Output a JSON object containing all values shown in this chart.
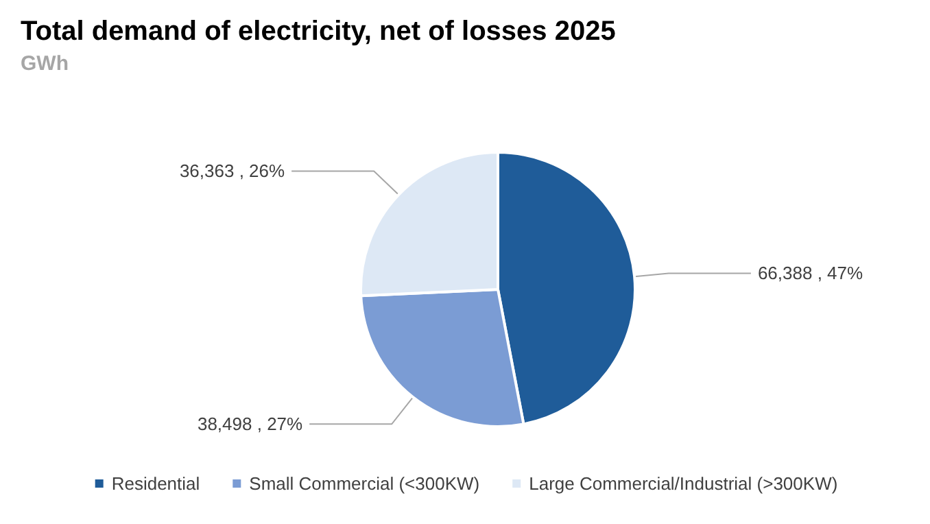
{
  "chart_data": {
    "type": "pie",
    "title": "Total demand of electricity, net of losses 2025",
    "subtitle": "GWh",
    "categories": [
      "Residential",
      "Small Commercial (<300KW)",
      "Large Commercial/Industrial (>300KW)"
    ],
    "values": [
      66388,
      38498,
      36363
    ],
    "colors": [
      "#1f5c99",
      "#7b9cd4",
      "#dde8f5"
    ],
    "value_labels": [
      "66,388 , 47%",
      "38,498 , 27%",
      "36,363 , 26%"
    ],
    "legend": "bottom"
  }
}
